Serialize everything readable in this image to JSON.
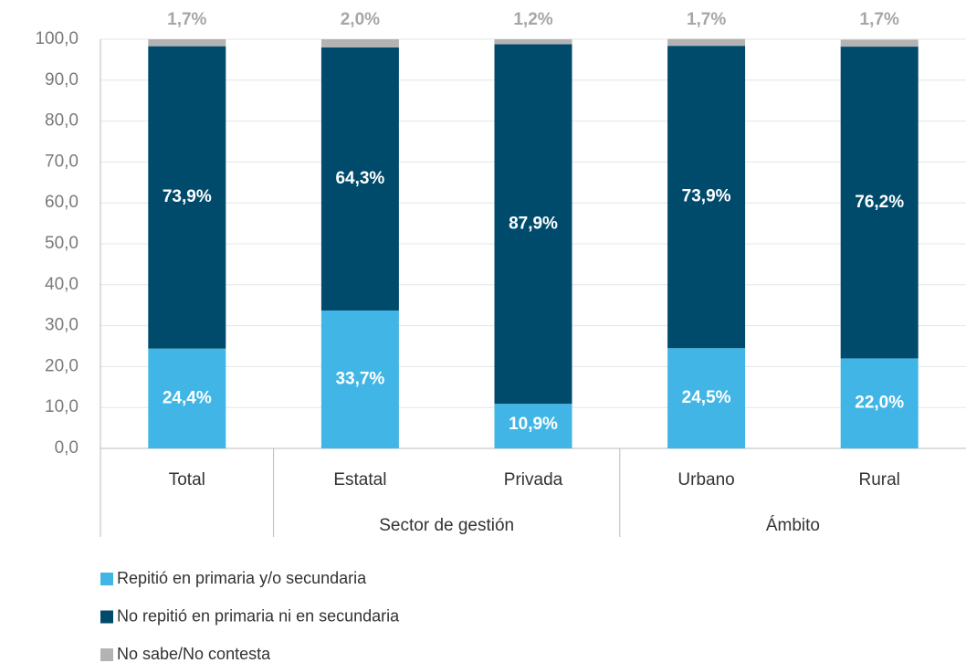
{
  "chart_data": {
    "type": "stacked_bar",
    "categories": [
      "Total",
      "Estatal",
      "Privada",
      "Urbano",
      "Rural"
    ],
    "groups": [
      {
        "label": "Sector de gestión",
        "from": "Estatal",
        "to": "Privada"
      },
      {
        "label": "Ámbito",
        "from": "Urbano",
        "to": "Rural"
      }
    ],
    "series": [
      {
        "name": "Repitió en primaria y/o secundaria",
        "color": "#41b6e6",
        "values": [
          24.4,
          33.7,
          10.9,
          24.5,
          22.0
        ],
        "value_labels": [
          "24,4%",
          "33,7%",
          "10,9%",
          "24,5%",
          "22,0%"
        ]
      },
      {
        "name": "No repitió en primaria ni en secundaria",
        "color": "#004b6b",
        "values": [
          73.9,
          64.3,
          87.9,
          73.9,
          76.2
        ],
        "value_labels": [
          "73,9%",
          "64,3%",
          "87,9%",
          "73,9%",
          "76,2%"
        ]
      },
      {
        "name": "No sabe/No contesta",
        "color": "#b3b3b3",
        "values": [
          1.7,
          2.0,
          1.2,
          1.7,
          1.7
        ],
        "value_labels": [
          "1,7%",
          "2,0%",
          "1,2%",
          "1,7%",
          "1,7%"
        ]
      }
    ],
    "ylim": [
      0,
      100
    ],
    "yticks": [
      {
        "value": 0,
        "label": "0,0"
      },
      {
        "value": 10,
        "label": "10,0"
      },
      {
        "value": 20,
        "label": "20,0"
      },
      {
        "value": 30,
        "label": "30,0"
      },
      {
        "value": 40,
        "label": "40,0"
      },
      {
        "value": 50,
        "label": "50,0"
      },
      {
        "value": 60,
        "label": "60,0"
      },
      {
        "value": 70,
        "label": "70,0"
      },
      {
        "value": 80,
        "label": "80,0"
      },
      {
        "value": 90,
        "label": "90,0"
      },
      {
        "value": 100,
        "label": "100,0"
      }
    ],
    "grid": true
  }
}
